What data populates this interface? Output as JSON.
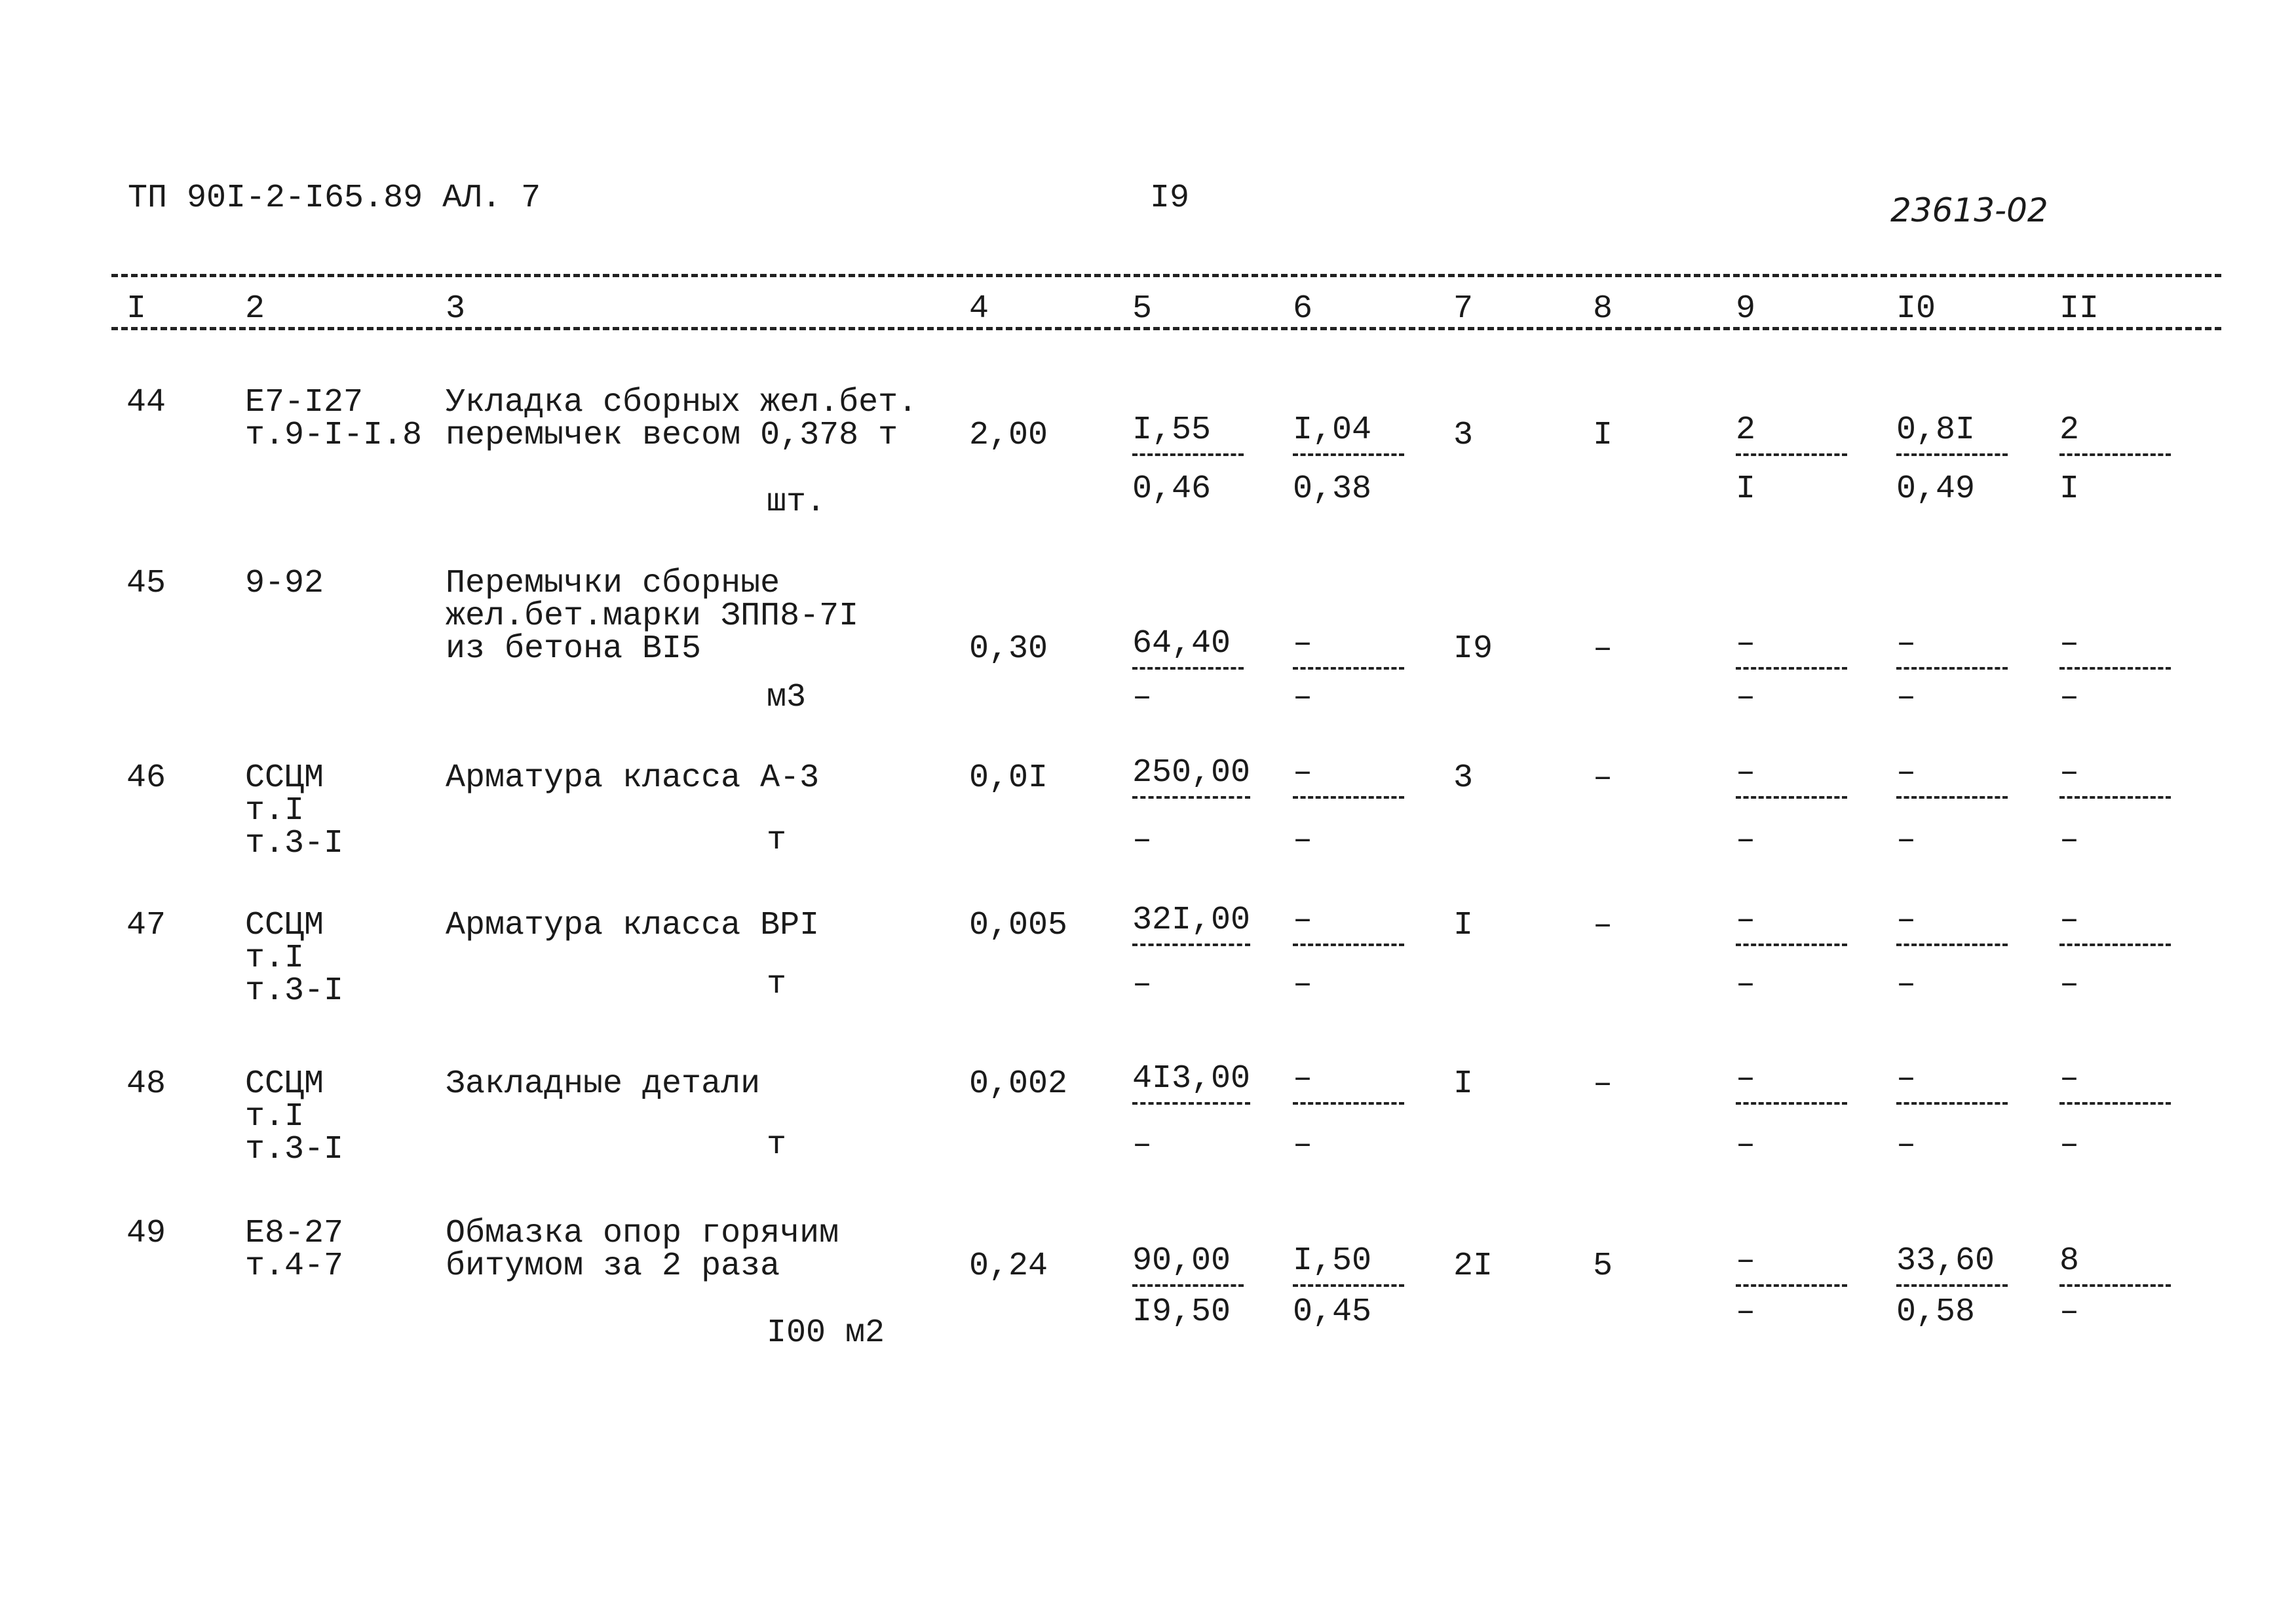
{
  "header": {
    "doc_code": "ТП 90I-2-I65.89 АЛ. 7",
    "page_number": "I9",
    "handwritten_number": "23613-02"
  },
  "columns": [
    "I",
    "2",
    "3",
    "4",
    "5",
    "6",
    "7",
    "8",
    "9",
    "I0",
    "II"
  ],
  "rows": [
    {
      "num": "44",
      "code": [
        "E7-I27",
        "т.9-I-I.8"
      ],
      "desc": [
        "Укладка сборных жел.бет.",
        "перемычек весом 0,378 т"
      ],
      "unit": "шт.",
      "qty": "2,00",
      "c5": [
        "I,55",
        "0,46"
      ],
      "c6": [
        "I,04",
        "0,38"
      ],
      "c7": "3",
      "c8": "I",
      "c9": [
        "2",
        "I"
      ],
      "c10": [
        "0,8I",
        "0,49"
      ],
      "c11": [
        "2",
        "I"
      ]
    },
    {
      "num": "45",
      "code": [
        "9-92"
      ],
      "desc": [
        "Перемычки сборные",
        "жел.бет.марки ЗПП8-7I",
        "из бетона BI5"
      ],
      "unit": "м3",
      "qty": "0,30",
      "c5": [
        "64,40",
        "–"
      ],
      "c6": [
        "–",
        "–"
      ],
      "c7": "I9",
      "c8": "–",
      "c9": [
        "–",
        "–"
      ],
      "c10": [
        "–",
        "–"
      ],
      "c11": [
        "–",
        "–"
      ]
    },
    {
      "num": "46",
      "code": [
        "ССЦМ",
        "т.I",
        "т.3-I"
      ],
      "desc": [
        "Арматура класса А-3"
      ],
      "unit": "т",
      "qty": "0,0I",
      "c5": [
        "250,00",
        "–"
      ],
      "c6": [
        "–",
        "–"
      ],
      "c7": "3",
      "c8": "–",
      "c9": [
        "–",
        "–"
      ],
      "c10": [
        "–",
        "–"
      ],
      "c11": [
        "–",
        "–"
      ]
    },
    {
      "num": "47",
      "code": [
        "ССЦМ",
        "т.I",
        "т.3-I"
      ],
      "desc": [
        "Арматура класса BPI"
      ],
      "unit": "т",
      "qty": "0,005",
      "c5": [
        "32I,00",
        "–"
      ],
      "c6": [
        "–",
        "–"
      ],
      "c7": "I",
      "c8": "–",
      "c9": [
        "–",
        "–"
      ],
      "c10": [
        "–",
        "–"
      ],
      "c11": [
        "–",
        "–"
      ]
    },
    {
      "num": "48",
      "code": [
        "ССЦМ",
        "т.I",
        "т.3-I"
      ],
      "desc": [
        "Закладные детали"
      ],
      "unit": "т",
      "qty": "0,002",
      "c5": [
        "4I3,00",
        "–"
      ],
      "c6": [
        "–",
        "–"
      ],
      "c7": "I",
      "c8": "–",
      "c9": [
        "–",
        "–"
      ],
      "c10": [
        "–",
        "–"
      ],
      "c11": [
        "–",
        "–"
      ]
    },
    {
      "num": "49",
      "code": [
        "E8-27",
        "т.4-7"
      ],
      "desc": [
        "Обмазка опор горячим",
        "битумом за 2 раза"
      ],
      "unit": "I00 м2",
      "qty": "0,24",
      "c5": [
        "90,00",
        "I9,50"
      ],
      "c6": [
        "I,50",
        "0,45"
      ],
      "c7": "2I",
      "c8": "5",
      "c9": [
        "–",
        "–"
      ],
      "c10": [
        "33,60",
        "0,58"
      ],
      "c11": [
        "8",
        "–"
      ]
    }
  ]
}
